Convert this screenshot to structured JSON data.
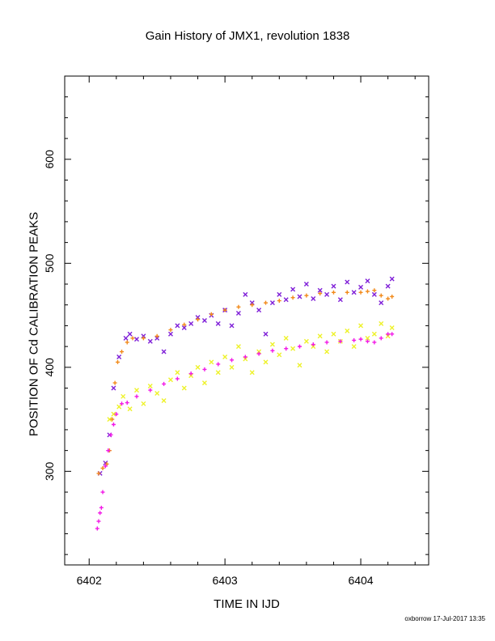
{
  "chart_data": {
    "type": "scatter",
    "title": "Gain History of JMX1, revolution 1838",
    "xlabel": "TIME IN IJD",
    "ylabel": "POSITION OF Cd CALIBRATION PEAKS",
    "xlim": [
      6401.82,
      6404.5
    ],
    "ylim": [
      210,
      680
    ],
    "xticks": [
      6402,
      6403,
      6404
    ],
    "yticks": [
      300,
      400,
      500,
      600
    ],
    "grid": false,
    "series": [
      {
        "color": "#7f1fd8",
        "marker": "x",
        "x": [
          6402.08,
          6402.12,
          6402.15,
          6402.18,
          6402.22,
          6402.27,
          6402.3,
          6402.35,
          6402.4,
          6402.45,
          6402.5,
          6402.55,
          6402.6,
          6402.65,
          6402.7,
          6402.75,
          6402.8,
          6402.85,
          6402.9,
          6402.95,
          6403.0,
          6403.05,
          6403.1,
          6403.15,
          6403.2,
          6403.25,
          6403.3,
          6403.35,
          6403.4,
          6403.45,
          6403.5,
          6403.55,
          6403.6,
          6403.65,
          6403.7,
          6403.75,
          6403.8,
          6403.85,
          6403.9,
          6403.95,
          6404.0,
          6404.05,
          6404.1,
          6404.15,
          6404.2,
          6404.23
        ],
        "y": [
          298,
          308,
          335,
          380,
          410,
          428,
          432,
          427,
          430,
          425,
          428,
          415,
          432,
          440,
          438,
          442,
          448,
          445,
          450,
          442,
          455,
          440,
          452,
          470,
          462,
          455,
          432,
          462,
          470,
          465,
          475,
          468,
          480,
          466,
          474,
          470,
          478,
          465,
          482,
          472,
          477,
          483,
          470,
          462,
          478,
          485
        ]
      },
      {
        "color": "#eef22a",
        "marker": "x",
        "x": [
          6402.15,
          6402.18,
          6402.22,
          6402.25,
          6402.3,
          6402.35,
          6402.4,
          6402.45,
          6402.5,
          6402.55,
          6402.6,
          6402.65,
          6402.7,
          6402.75,
          6402.8,
          6402.85,
          6402.9,
          6402.95,
          6403.0,
          6403.05,
          6403.1,
          6403.15,
          6403.2,
          6403.25,
          6403.3,
          6403.35,
          6403.4,
          6403.45,
          6403.5,
          6403.55,
          6403.6,
          6403.65,
          6403.7,
          6403.75,
          6403.8,
          6403.85,
          6403.9,
          6403.95,
          6404.0,
          6404.05,
          6404.1,
          6404.15,
          6404.2,
          6404.23
        ],
        "y": [
          350,
          355,
          362,
          372,
          360,
          378,
          365,
          382,
          375,
          368,
          388,
          395,
          380,
          392,
          400,
          385,
          405,
          395,
          410,
          400,
          420,
          408,
          395,
          415,
          405,
          422,
          412,
          428,
          418,
          402,
          425,
          420,
          430,
          415,
          432,
          425,
          435,
          420,
          440,
          428,
          432,
          442,
          430,
          438
        ]
      },
      {
        "color": "#f28a1a",
        "marker": "+",
        "x": [
          6402.07,
          6402.1,
          6402.13,
          6402.15,
          6402.17,
          6402.19,
          6402.21,
          6402.24,
          6402.28,
          6402.32,
          6402.4,
          6402.5,
          6402.6,
          6402.7,
          6402.8,
          6402.9,
          6403.0,
          6403.1,
          6403.2,
          6403.3,
          6403.4,
          6403.5,
          6403.6,
          6403.7,
          6403.8,
          6403.9,
          6404.0,
          6404.05,
          6404.1,
          6404.15,
          6404.2,
          6404.23
        ],
        "y": [
          298,
          303,
          307,
          320,
          350,
          385,
          405,
          415,
          424,
          428,
          428,
          430,
          436,
          441,
          446,
          451,
          455,
          458,
          460,
          462,
          464,
          467,
          469,
          471,
          472,
          472,
          472,
          473,
          474,
          469,
          466,
          468
        ]
      },
      {
        "color": "#f21ae6",
        "marker": "+",
        "x": [
          6402.06,
          6402.07,
          6402.08,
          6402.09,
          6402.1,
          6402.12,
          6402.14,
          6402.16,
          6402.18,
          6402.2,
          6402.24,
          6402.28,
          6402.35,
          6402.45,
          6402.55,
          6402.65,
          6402.75,
          6402.85,
          6402.95,
          6403.05,
          6403.15,
          6403.25,
          6403.35,
          6403.45,
          6403.55,
          6403.65,
          6403.75,
          6403.85,
          6403.95,
          6404.0,
          6404.05,
          6404.1,
          6404.15,
          6404.2,
          6404.23
        ],
        "y": [
          245,
          252,
          260,
          265,
          280,
          305,
          320,
          335,
          345,
          355,
          365,
          366,
          372,
          378,
          384,
          389,
          394,
          398,
          403,
          407,
          410,
          413,
          416,
          418,
          420,
          422,
          424,
          425,
          426,
          427,
          425,
          424,
          428,
          432,
          432
        ]
      }
    ]
  },
  "footer": "oxborrow 17-Jul-2017 13:35"
}
